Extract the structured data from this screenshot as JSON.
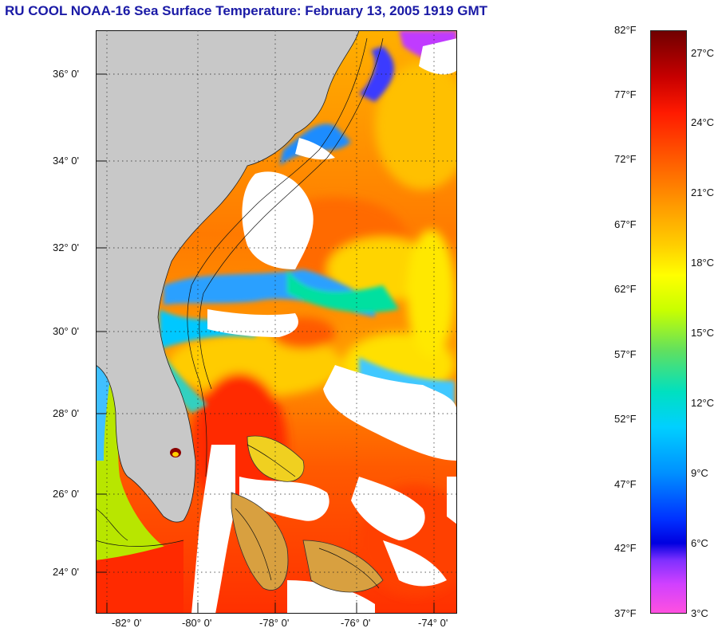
{
  "title": "RU COOL  NOAA-16  Sea Surface Temperature:  February 13, 2005 1919 GMT",
  "latitude_labels": [
    "36° 0'",
    "34° 0'",
    "32° 0'",
    "30° 0'",
    "28° 0'",
    "26° 0'",
    "24° 0'"
  ],
  "longitude_labels": [
    "-82° 0'",
    "-80° 0'",
    "-78° 0'",
    "-76° 0'",
    "-74° 0'"
  ],
  "colorbar": {
    "fahrenheit_labels": [
      "82°F",
      "77°F",
      "72°F",
      "67°F",
      "62°F",
      "57°F",
      "52°F",
      "47°F",
      "42°F",
      "37°F"
    ],
    "celsius_labels": [
      "27°C",
      "24°C",
      "21°C",
      "18°C",
      "15°C",
      "12°C",
      "9°C",
      "6°C",
      "3°C"
    ]
  },
  "colors": {
    "title": "#1a1aa6",
    "land": "#c8c8c8",
    "cloud": "#ffffff",
    "warm": "#ff3a00",
    "cold": "#3030ff"
  }
}
